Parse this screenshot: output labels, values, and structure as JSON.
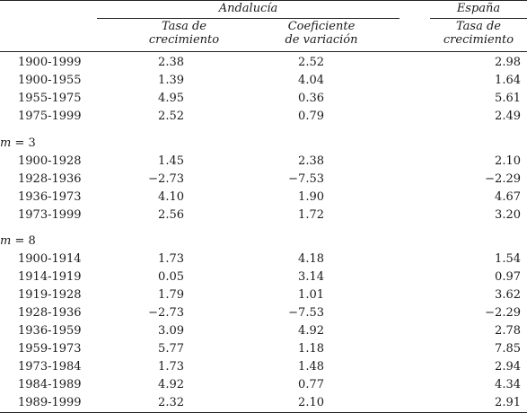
{
  "header": {
    "andalucia": "Andalucía",
    "espana": "España",
    "col1": [
      "Tasa de",
      "crecimiento"
    ],
    "col2": [
      "Coeficiente",
      "de variación"
    ],
    "col3": [
      "Tasa de",
      "crecimiento"
    ]
  },
  "blocks": [
    {
      "label_var": "",
      "label_rest": "",
      "rows": [
        {
          "period": "1900-1999",
          "a": "2.38",
          "b": "2.52",
          "c": "2.98"
        },
        {
          "period": "1900-1955",
          "a": "1.39",
          "b": "4.04",
          "c": "1.64"
        },
        {
          "period": "1955-1975",
          "a": "4.95",
          "b": "0.36",
          "c": "5.61"
        },
        {
          "period": "1975-1999",
          "a": "2.52",
          "b": "0.79",
          "c": "2.49"
        }
      ]
    },
    {
      "label_var": "m",
      "label_rest": " = 3",
      "rows": [
        {
          "period": "1900-1928",
          "a": "1.45",
          "b": "2.38",
          "c": "2.10"
        },
        {
          "period": "1928-1936",
          "a": "−2.73",
          "b": "−7.53",
          "c": "−2.29"
        },
        {
          "period": "1936-1973",
          "a": "4.10",
          "b": "1.90",
          "c": "4.67"
        },
        {
          "period": "1973-1999",
          "a": "2.56",
          "b": "1.72",
          "c": "3.20"
        }
      ]
    },
    {
      "label_var": "m",
      "label_rest": " = 8",
      "rows": [
        {
          "period": "1900-1914",
          "a": "1.73",
          "b": "4.18",
          "c": "1.54"
        },
        {
          "period": "1914-1919",
          "a": "0.05",
          "b": "3.14",
          "c": "0.97"
        },
        {
          "period": "1919-1928",
          "a": "1.79",
          "b": "1.01",
          "c": "3.62"
        },
        {
          "period": "1928-1936",
          "a": "−2.73",
          "b": "−7.53",
          "c": "−2.29"
        },
        {
          "period": "1936-1959",
          "a": "3.09",
          "b": "4.92",
          "c": "2.78"
        },
        {
          "period": "1959-1973",
          "a": "5.77",
          "b": "1.18",
          "c": "7.85"
        },
        {
          "period": "1973-1984",
          "a": "1.73",
          "b": "1.48",
          "c": "2.94"
        },
        {
          "period": "1984-1989",
          "a": "4.92",
          "b": "0.77",
          "c": "4.34"
        },
        {
          "period": "1989-1999",
          "a": "2.32",
          "b": "2.10",
          "c": "2.91"
        }
      ]
    }
  ]
}
